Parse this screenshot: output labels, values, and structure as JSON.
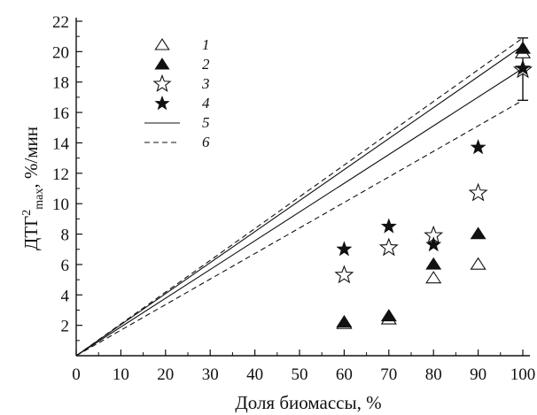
{
  "chart_data": {
    "type": "scatter",
    "xlabel": "Доля биомассы, %",
    "ylabel": "ДТГ",
    "ylabel_superscript": "2",
    "ylabel_subscript": "max",
    "ylabel_unit": ", %/мин",
    "xlim": [
      0,
      100
    ],
    "ylim": [
      0,
      22
    ],
    "x_ticks": [
      "0",
      "10",
      "20",
      "30",
      "40",
      "50",
      "60",
      "70",
      "80",
      "90",
      "100"
    ],
    "y_ticks": [
      "2",
      "4",
      "6",
      "8",
      "10",
      "12",
      "14",
      "16",
      "18",
      "20",
      "22"
    ],
    "legend_position": "top-left",
    "series": [
      {
        "name": "1",
        "marker": "triangle-open",
        "x": [
          60,
          70,
          80,
          90,
          100
        ],
        "y": [
          2.1,
          2.4,
          5.1,
          6.0,
          19.9
        ]
      },
      {
        "name": "2",
        "marker": "triangle-filled",
        "x": [
          60,
          70,
          80,
          90,
          100
        ],
        "y": [
          2.2,
          2.6,
          6.0,
          8.0,
          20.2
        ]
      },
      {
        "name": "3",
        "marker": "star-open",
        "x": [
          60,
          70,
          80,
          90,
          100
        ],
        "y": [
          5.3,
          7.1,
          7.9,
          10.7,
          18.8
        ]
      },
      {
        "name": "4",
        "marker": "star-filled",
        "x": [
          60,
          70,
          80,
          90,
          100
        ],
        "y": [
          7.0,
          8.5,
          7.3,
          13.7,
          18.9
        ]
      },
      {
        "name": "5",
        "marker": "line-solid",
        "lines": [
          {
            "x": [
              0,
              100
            ],
            "y": [
              0,
              20.4
            ]
          },
          {
            "x": [
              0,
              100
            ],
            "y": [
              0,
              18.9
            ]
          }
        ]
      },
      {
        "name": "6",
        "marker": "line-dashed",
        "lines": [
          {
            "x": [
              0,
              100
            ],
            "y": [
              0,
              20.9
            ]
          },
          {
            "x": [
              0,
              100
            ],
            "y": [
              0,
              16.8
            ]
          }
        ]
      }
    ],
    "error_bar": {
      "x": 100,
      "y_low": 16.8,
      "y_high": 20.9
    }
  }
}
